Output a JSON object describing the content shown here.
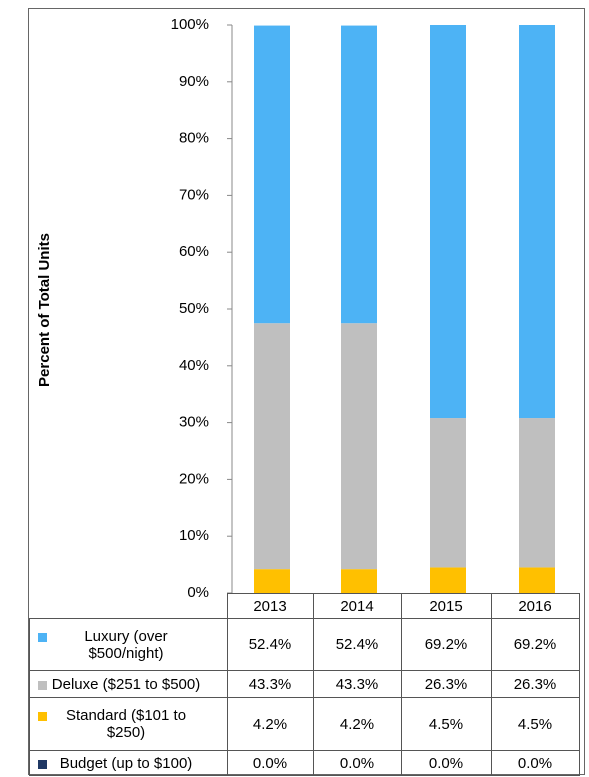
{
  "chart_data": {
    "type": "bar",
    "stacked": true,
    "y_label": "Percent of Total Units",
    "categories": [
      "2013",
      "2014",
      "2015",
      "2016"
    ],
    "series": [
      {
        "name": "Luxury (over $500/night)",
        "color": "#4db3f5",
        "values": [
          52.4,
          52.4,
          69.2,
          69.2
        ],
        "value_labels": [
          "52.4%",
          "52.4%",
          "69.2%",
          "69.2%"
        ]
      },
      {
        "name": "Deluxe ($251 to $500)",
        "color": "#bfbfbf",
        "values": [
          43.3,
          43.3,
          26.3,
          26.3
        ],
        "value_labels": [
          "43.3%",
          "43.3%",
          "26.3%",
          "26.3%"
        ]
      },
      {
        "name": "Standard ($101 to $250)",
        "color": "#ffc000",
        "values": [
          4.2,
          4.2,
          4.5,
          4.5
        ],
        "value_labels": [
          "4.2%",
          "4.2%",
          "4.5%",
          "4.5%"
        ]
      },
      {
        "name": "Budget (up to $100)",
        "color": "#1f3864",
        "values": [
          0,
          0,
          0,
          0
        ],
        "value_labels": [
          "0.0%",
          "0.0%",
          "0.0%",
          "0.0%"
        ]
      }
    ],
    "ylim": [
      0,
      100
    ],
    "yticks": [
      {
        "value": 0,
        "label": "0%"
      },
      {
        "value": 10,
        "label": "10%"
      },
      {
        "value": 20,
        "label": "20%"
      },
      {
        "value": 30,
        "label": "30%"
      },
      {
        "value": 40,
        "label": "40%"
      },
      {
        "value": 50,
        "label": "50%"
      },
      {
        "value": 60,
        "label": "60%"
      },
      {
        "value": 70,
        "label": "70%"
      },
      {
        "value": 80,
        "label": "80%"
      },
      {
        "value": 90,
        "label": "90%"
      },
      {
        "value": 100,
        "label": "100%"
      }
    ],
    "grid": false
  }
}
